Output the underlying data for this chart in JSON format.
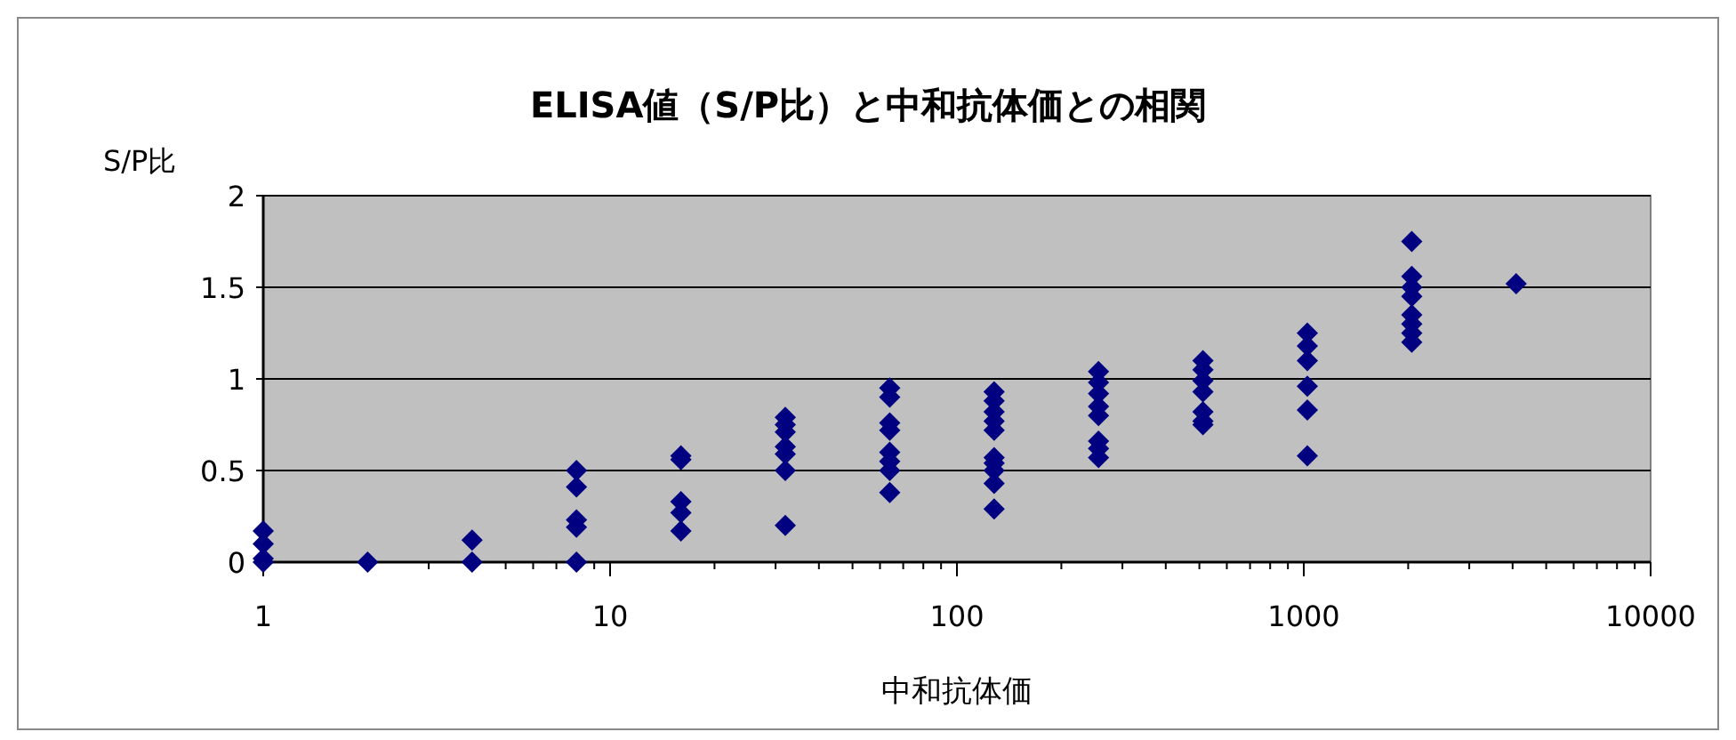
{
  "chart_data": {
    "type": "scatter",
    "title": "ELISA値（S/P比）と中和抗体価との相関",
    "xlabel": "中和抗体価",
    "ylabel": "S/P比",
    "log": "x",
    "grid": "y",
    "marker": "diamond",
    "xlim": [
      1,
      10000
    ],
    "xticks": [
      1,
      10,
      100,
      1000,
      10000
    ],
    "ylim": [
      0,
      2
    ],
    "yticks": [
      0,
      0.5,
      1,
      1.5,
      2
    ],
    "series": [
      {
        "color": "#000080",
        "x": [
          1,
          1,
          1,
          1,
          2,
          4,
          4,
          8,
          8,
          8,
          8,
          8,
          16,
          16,
          16,
          16,
          16,
          32,
          32,
          32,
          32,
          32,
          32,
          32,
          64,
          64,
          64,
          64,
          64,
          64,
          64,
          64,
          128,
          128,
          128,
          128,
          128,
          128,
          128,
          128,
          128,
          128,
          256,
          256,
          256,
          256,
          256,
          256,
          256,
          256,
          512,
          512,
          512,
          512,
          512,
          512,
          512,
          1024,
          1024,
          1024,
          1024,
          1024,
          1024,
          2048,
          2048,
          2048,
          2048,
          2048,
          2048,
          2048,
          2048,
          4096
        ],
        "values": [
          0.17,
          0.1,
          0.02,
          0,
          0,
          0.12,
          0,
          0.5,
          0.41,
          0.23,
          0.19,
          0,
          0.58,
          0.56,
          0.33,
          0.27,
          0.17,
          0.79,
          0.75,
          0.71,
          0.63,
          0.59,
          0.5,
          0.2,
          0.95,
          0.9,
          0.76,
          0.72,
          0.6,
          0.55,
          0.5,
          0.38,
          0.93,
          0.88,
          0.82,
          0.77,
          0.72,
          0.57,
          0.54,
          0.5,
          0.43,
          0.29,
          1.04,
          0.98,
          0.92,
          0.85,
          0.8,
          0.66,
          0.62,
          0.57,
          1.1,
          1.05,
          0.99,
          0.93,
          0.82,
          0.77,
          0.75,
          1.25,
          1.18,
          1.1,
          0.96,
          0.83,
          0.58,
          1.75,
          1.56,
          1.5,
          1.45,
          1.35,
          1.3,
          1.25,
          1.2,
          1.52
        ]
      }
    ]
  }
}
